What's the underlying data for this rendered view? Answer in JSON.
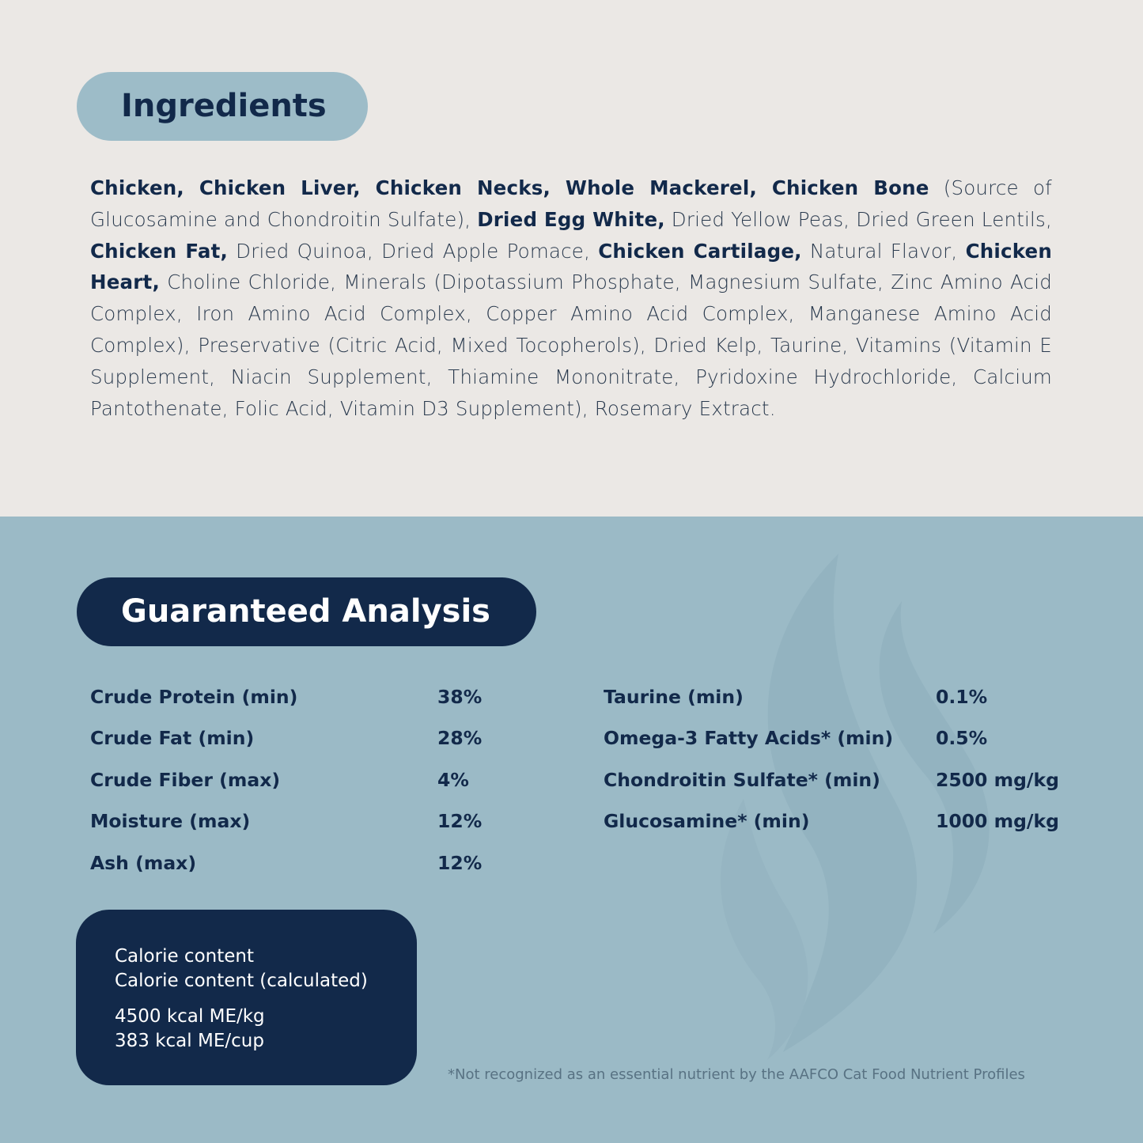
{
  "ingredients": {
    "title": "Ingredients",
    "segments": [
      {
        "text": "Chicken, Chicken Liver, Chicken Necks, Whole Mackerel, Chicken Bone",
        "bold": true
      },
      {
        "text": " (Source of Glucosamine and Chondroitin Sulfate), ",
        "bold": false
      },
      {
        "text": "Dried Egg White,",
        "bold": true
      },
      {
        "text": " Dried Yellow Peas, Dried Green Lentils, ",
        "bold": false
      },
      {
        "text": "Chicken Fat,",
        "bold": true
      },
      {
        "text": " Dried Quinoa, Dried Apple Pomace, ",
        "bold": false
      },
      {
        "text": "Chicken Cartilage,",
        "bold": true
      },
      {
        "text": " Natural Flavor, ",
        "bold": false
      },
      {
        "text": "Chicken Heart,",
        "bold": true
      },
      {
        "text": " Choline Chloride, Minerals (Dipotassium Phosphate, Magnesium Sulfate, Zinc Amino Acid Complex, Iron Amino Acid Complex, Copper Amino Acid Complex, Manganese Amino Acid Complex), Preservative (Citric Acid, Mixed Tocopherols), Dried Kelp, Taurine, Vitamins (Vitamin E Supplement, Niacin Supplement, Thiamine Mononitrate, Pyridoxine Hydrochloride, Calcium Pantothenate, Folic Acid, Vitamin D3 Supplement), Rosemary Extract.",
        "bold": false
      }
    ]
  },
  "analysis": {
    "title": "Guaranteed Analysis",
    "left": [
      {
        "label": "Crude Protein (min)",
        "value": "38%"
      },
      {
        "label": "Crude Fat (min)",
        "value": "28%"
      },
      {
        "label": "Crude Fiber (max)",
        "value": "4%"
      },
      {
        "label": "Moisture (max)",
        "value": "12%"
      },
      {
        "label": "Ash (max)",
        "value": "12%"
      }
    ],
    "right": [
      {
        "label": "Taurine (min)",
        "value": "0.1%"
      },
      {
        "label": "Omega-3 Fatty Acids* (min)",
        "value": "0.5%"
      },
      {
        "label": "Chondroitin Sulfate* (min)",
        "value": "2500 mg/kg"
      },
      {
        "label": "Glucosamine* (min)",
        "value": "1000 mg/kg"
      }
    ],
    "calorie": {
      "label1": "Calorie content",
      "label2": "Calorie content (calculated)",
      "value1": "4500 kcal ME/kg",
      "value2": "383 kcal ME/cup"
    },
    "footnote": "*Not recognized as an essential nutrient by the AAFCO Cat Food Nutrient Profiles"
  },
  "colors": {
    "top_bg": "#ebe8e5",
    "bottom_bg": "#9bbac6",
    "navy": "#12294a",
    "pill_light": "#9dbcc8"
  },
  "icons": {
    "watermark": "flame-icon"
  }
}
